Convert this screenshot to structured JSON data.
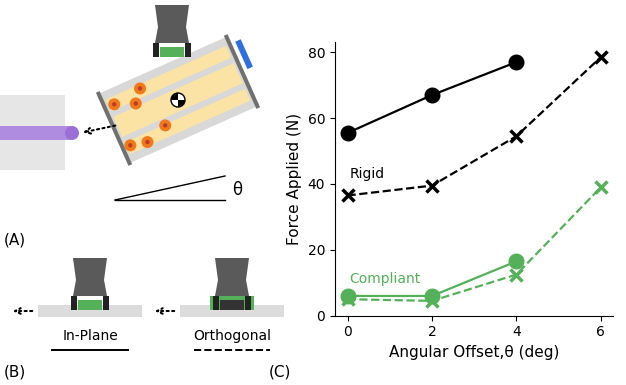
{
  "chart_data": {
    "type": "line",
    "x": [
      0,
      2,
      4,
      6
    ],
    "series": [
      {
        "color": "#000000",
        "marker": "circle",
        "line_style": "solid",
        "values": [
          55.5,
          67,
          77,
          null
        ]
      },
      {
        "color": "#000000",
        "marker": "x",
        "line_style": "dashed",
        "values": [
          36.5,
          39.5,
          54.5,
          78.5
        ]
      },
      {
        "color": "#55b05a",
        "marker": "circle",
        "line_style": "solid",
        "values": [
          6,
          6,
          16.5,
          null
        ]
      },
      {
        "color": "#55b05a",
        "marker": "x",
        "line_style": "dashed",
        "values": [
          5,
          4.5,
          12.5,
          39
        ]
      }
    ],
    "x_label": "Angular Offset,θ (deg)",
    "y_label": "Force Applied (N)",
    "xlim": [
      -0.3,
      6.3
    ],
    "ylim": [
      0,
      83
    ],
    "xticks": [
      0,
      2,
      4,
      6
    ],
    "yticks": [
      0,
      20,
      40,
      60,
      80
    ],
    "grid": false,
    "annotations": [
      {
        "text": "Rigid",
        "x": 0.05,
        "y": 43,
        "color": "#000000"
      },
      {
        "text": "Compliant",
        "x": 0.05,
        "y": 11,
        "color": "#55b05a"
      }
    ]
  },
  "diagram": {
    "panel_labels": [
      "(A)",
      "(B)",
      "(C)"
    ],
    "angle_symbol": "θ",
    "in_plane": "In-Plane",
    "orthogonal": "Orthogonal"
  }
}
